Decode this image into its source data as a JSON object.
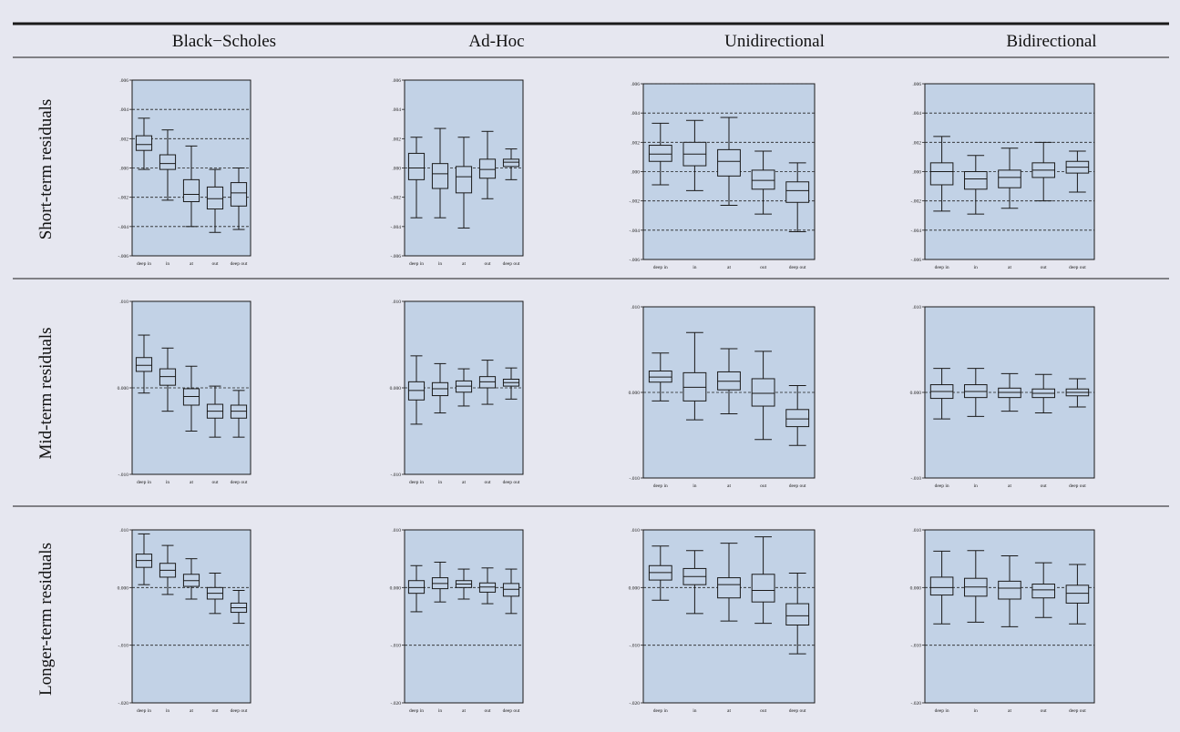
{
  "colors": {
    "background": "#e6e7f0",
    "plot_fill": "#c2d2e6",
    "rule": "#1a1a1a",
    "box_stroke": "#1a1a1a"
  },
  "column_headers": [
    "Black−Scholes",
    "Ad-Hoc",
    "Unidirectional",
    "Bidirectional"
  ],
  "row_headers": [
    "Short-term residuals",
    "Mid-term residuals",
    "Longer-term residuals"
  ],
  "chart_data": [
    {
      "type": "boxplot",
      "row": "Short-term residuals",
      "column": "Black−Scholes",
      "categories": [
        "deep  in",
        "in",
        "at",
        "out",
        "deep  out"
      ],
      "ylim": [
        -0.006,
        0.006
      ],
      "yticks": [
        ".006",
        ".004",
        ".002",
        ".000",
        "-.002",
        "-.004",
        "-.006"
      ],
      "grid_y": [
        0.004,
        0.002,
        0.0,
        -0.002,
        -0.004
      ],
      "boxes": [
        {
          "min": -0.0001,
          "q1": 0.0012,
          "median": 0.0016,
          "q3": 0.0022,
          "max": 0.0034
        },
        {
          "min": -0.0022,
          "q1": -0.0001,
          "median": 0.0003,
          "q3": 0.0009,
          "max": 0.0026
        },
        {
          "min": -0.004,
          "q1": -0.0023,
          "median": -0.0018,
          "q3": -0.0008,
          "max": 0.0015
        },
        {
          "min": -0.0044,
          "q1": -0.0028,
          "median": -0.0021,
          "q3": -0.0013,
          "max": -0.0001
        },
        {
          "min": -0.0042,
          "q1": -0.0026,
          "median": -0.0017,
          "q3": -0.001,
          "max": 0.0
        }
      ]
    },
    {
      "type": "boxplot",
      "row": "Short-term residuals",
      "column": "Ad-Hoc",
      "categories": [
        "deep  in",
        "in",
        "at",
        "out",
        "deep  out"
      ],
      "ylim": [
        -0.006,
        0.006
      ],
      "yticks": [
        ".006",
        ".004",
        ".002",
        ".000",
        "-.002",
        "-.004",
        "-.006"
      ],
      "grid_y": [
        0.0
      ],
      "boxes": [
        {
          "min": -0.0034,
          "q1": -0.0008,
          "median": 0.0,
          "q3": 0.001,
          "max": 0.0021
        },
        {
          "min": -0.0034,
          "q1": -0.0014,
          "median": -0.0004,
          "q3": 0.0003,
          "max": 0.0027
        },
        {
          "min": -0.0041,
          "q1": -0.0017,
          "median": -0.0006,
          "q3": 0.0001,
          "max": 0.0021
        },
        {
          "min": -0.0021,
          "q1": -0.0007,
          "median": -0.0001,
          "q3": 0.0006,
          "max": 0.0025
        },
        {
          "min": -0.0008,
          "q1": 0.0001,
          "median": 0.0004,
          "q3": 0.0006,
          "max": 0.0013
        }
      ]
    },
    {
      "type": "boxplot",
      "row": "Short-term residuals",
      "column": "Unidirectional",
      "categories": [
        "deep  in",
        "in",
        "at",
        "out",
        "deep  out"
      ],
      "ylim": [
        -0.006,
        0.006
      ],
      "yticks": [
        ".006",
        ".004",
        ".002",
        ".000",
        "-.002",
        "-.004",
        "-.006"
      ],
      "grid_y": [
        0.006,
        0.004,
        0.002,
        0.0,
        -0.002,
        -0.004
      ],
      "boxes": [
        {
          "min": -0.0009,
          "q1": 0.0007,
          "median": 0.0012,
          "q3": 0.0018,
          "max": 0.0033
        },
        {
          "min": -0.0013,
          "q1": 0.0004,
          "median": 0.0012,
          "q3": 0.002,
          "max": 0.0035
        },
        {
          "min": -0.0023,
          "q1": -0.0003,
          "median": 0.0007,
          "q3": 0.0015,
          "max": 0.0037
        },
        {
          "min": -0.0029,
          "q1": -0.0012,
          "median": -0.0006,
          "q3": 0.0001,
          "max": 0.0014
        },
        {
          "min": -0.0041,
          "q1": -0.0021,
          "median": -0.0013,
          "q3": -0.0007,
          "max": 0.0006
        }
      ]
    },
    {
      "type": "boxplot",
      "row": "Short-term residuals",
      "column": "Bidirectional",
      "categories": [
        "deep  in",
        "in",
        "at",
        "out",
        "deep  out"
      ],
      "ylim": [
        -0.006,
        0.006
      ],
      "yticks": [
        ".006",
        ".004",
        ".002",
        ".000",
        "-.002",
        "-.004",
        "-.006"
      ],
      "grid_y": [
        0.004,
        0.002,
        0.0,
        -0.002,
        -0.004
      ],
      "boxes": [
        {
          "min": -0.0027,
          "q1": -0.0009,
          "median": 0.0,
          "q3": 0.0006,
          "max": 0.0024
        },
        {
          "min": -0.0029,
          "q1": -0.0012,
          "median": -0.0005,
          "q3": 0.0,
          "max": 0.0011
        },
        {
          "min": -0.0025,
          "q1": -0.0011,
          "median": -0.0004,
          "q3": 0.0001,
          "max": 0.0016
        },
        {
          "min": -0.002,
          "q1": -0.0004,
          "median": 0.0001,
          "q3": 0.0006,
          "max": 0.002
        },
        {
          "min": -0.0014,
          "q1": -0.0001,
          "median": 0.0003,
          "q3": 0.0007,
          "max": 0.0014
        }
      ]
    },
    {
      "type": "boxplot",
      "row": "Mid-term residuals",
      "column": "Black−Scholes",
      "categories": [
        "deep  in",
        "in",
        "at",
        "out",
        "deep  out"
      ],
      "ylim": [
        -0.01,
        0.01
      ],
      "yticks": [
        ".010",
        "0.000",
        "-.010"
      ],
      "grid_y": [
        0.0
      ],
      "boxes": [
        {
          "min": -0.0006,
          "q1": 0.0019,
          "median": 0.0026,
          "q3": 0.0035,
          "max": 0.0061
        },
        {
          "min": -0.0027,
          "q1": 0.0003,
          "median": 0.0013,
          "q3": 0.0022,
          "max": 0.0046
        },
        {
          "min": -0.005,
          "q1": -0.002,
          "median": -0.001,
          "q3": -0.0001,
          "max": 0.0025
        },
        {
          "min": -0.0057,
          "q1": -0.0035,
          "median": -0.0027,
          "q3": -0.0019,
          "max": 0.0002
        },
        {
          "min": -0.0057,
          "q1": -0.0035,
          "median": -0.0027,
          "q3": -0.002,
          "max": -0.0003
        }
      ]
    },
    {
      "type": "boxplot",
      "row": "Mid-term residuals",
      "column": "Ad-Hoc",
      "categories": [
        "deep  in",
        "in",
        "at",
        "out",
        "deep  out"
      ],
      "ylim": [
        -0.01,
        0.01
      ],
      "yticks": [
        ".010",
        "0.000",
        "-.010"
      ],
      "grid_y": [
        0.0
      ],
      "boxes": [
        {
          "min": -0.0042,
          "q1": -0.0014,
          "median": -0.0003,
          "q3": 0.0007,
          "max": 0.0037
        },
        {
          "min": -0.0029,
          "q1": -0.0009,
          "median": -0.0001,
          "q3": 0.0006,
          "max": 0.0028
        },
        {
          "min": -0.0021,
          "q1": -0.0005,
          "median": 0.0002,
          "q3": 0.0008,
          "max": 0.0022
        },
        {
          "min": -0.0019,
          "q1": 0.0,
          "median": 0.0007,
          "q3": 0.0013,
          "max": 0.0032
        },
        {
          "min": -0.0013,
          "q1": 0.0002,
          "median": 0.0006,
          "q3": 0.001,
          "max": 0.0023
        }
      ]
    },
    {
      "type": "boxplot",
      "row": "Mid-term residuals",
      "column": "Unidirectional",
      "categories": [
        "deep  in",
        "in",
        "at",
        "out",
        "deep  out"
      ],
      "ylim": [
        -0.01,
        0.01
      ],
      "yticks": [
        ".010",
        "0.000",
        "-.010"
      ],
      "grid_y": [
        0.0
      ],
      "boxes": [
        {
          "min": -0.001,
          "q1": 0.0012,
          "median": 0.0018,
          "q3": 0.0025,
          "max": 0.0046
        },
        {
          "min": -0.0032,
          "q1": -0.001,
          "median": 0.0006,
          "q3": 0.0023,
          "max": 0.007
        },
        {
          "min": -0.0025,
          "q1": 0.0003,
          "median": 0.0013,
          "q3": 0.0024,
          "max": 0.0051
        },
        {
          "min": -0.0055,
          "q1": -0.0016,
          "median": -0.0001,
          "q3": 0.0016,
          "max": 0.0048
        },
        {
          "min": -0.0062,
          "q1": -0.004,
          "median": -0.0031,
          "q3": -0.002,
          "max": 0.0008
        }
      ]
    },
    {
      "type": "boxplot",
      "row": "Mid-term residuals",
      "column": "Bidirectional",
      "categories": [
        "deep  in",
        "in",
        "at",
        "out",
        "deep  out"
      ],
      "ylim": [
        -0.01,
        0.01
      ],
      "yticks": [
        ".010",
        "0.000",
        "-.010"
      ],
      "grid_y": [
        0.0
      ],
      "boxes": [
        {
          "min": -0.0031,
          "q1": -0.0007,
          "median": 0.0001,
          "q3": 0.0009,
          "max": 0.0028
        },
        {
          "min": -0.0028,
          "q1": -0.0006,
          "median": 0.0001,
          "q3": 0.0009,
          "max": 0.0028
        },
        {
          "min": -0.0022,
          "q1": -0.0006,
          "median": 0.0,
          "q3": 0.0005,
          "max": 0.0022
        },
        {
          "min": -0.0024,
          "q1": -0.0006,
          "median": -0.0001,
          "q3": 0.0004,
          "max": 0.0021
        },
        {
          "min": -0.0017,
          "q1": -0.0004,
          "median": 0.0,
          "q3": 0.0004,
          "max": 0.0016
        }
      ]
    },
    {
      "type": "boxplot",
      "row": "Longer-term residuals",
      "column": "Black−Scholes",
      "categories": [
        "deep  in",
        "in",
        "at",
        "out",
        "deep  out"
      ],
      "ylim": [
        -0.02,
        0.01
      ],
      "yticks": [
        ".010",
        "0.000",
        "-.010",
        "-.020"
      ],
      "grid_y": [
        0.0,
        -0.01
      ],
      "boxes": [
        {
          "min": 0.0005,
          "q1": 0.0035,
          "median": 0.0047,
          "q3": 0.0058,
          "max": 0.0093
        },
        {
          "min": -0.0012,
          "q1": 0.0018,
          "median": 0.003,
          "q3": 0.0042,
          "max": 0.0073
        },
        {
          "min": -0.002,
          "q1": 0.0002,
          "median": 0.0012,
          "q3": 0.0023,
          "max": 0.005
        },
        {
          "min": -0.0045,
          "q1": -0.002,
          "median": -0.001,
          "q3": 0.0,
          "max": 0.0025
        },
        {
          "min": -0.0062,
          "q1": -0.0043,
          "median": -0.0035,
          "q3": -0.0027,
          "max": -0.0005
        }
      ]
    },
    {
      "type": "boxplot",
      "row": "Longer-term residuals",
      "column": "Ad-Hoc",
      "categories": [
        "deep  in",
        "in",
        "at",
        "out",
        "deep  out"
      ],
      "ylim": [
        -0.02,
        0.01
      ],
      "yticks": [
        ".010",
        "0.000",
        "-.010",
        "-.020"
      ],
      "grid_y": [
        0.0,
        -0.01
      ],
      "boxes": [
        {
          "min": -0.0042,
          "q1": -0.001,
          "median": 0.0,
          "q3": 0.0012,
          "max": 0.0038
        },
        {
          "min": -0.0025,
          "q1": -0.0002,
          "median": 0.0007,
          "q3": 0.0017,
          "max": 0.0044
        },
        {
          "min": -0.002,
          "q1": 0.0,
          "median": 0.0006,
          "q3": 0.0012,
          "max": 0.0032
        },
        {
          "min": -0.0028,
          "q1": -0.0008,
          "median": 0.0001,
          "q3": 0.0008,
          "max": 0.0034
        },
        {
          "min": -0.0045,
          "q1": -0.0015,
          "median": -0.0003,
          "q3": 0.0007,
          "max": 0.0032
        }
      ]
    },
    {
      "type": "boxplot",
      "row": "Longer-term residuals",
      "column": "Unidirectional",
      "categories": [
        "deep  in",
        "in",
        "at",
        "out",
        "deep  out"
      ],
      "ylim": [
        -0.02,
        0.01
      ],
      "yticks": [
        ".010",
        "0.000",
        "-.010",
        "-.020"
      ],
      "grid_y": [
        0.0,
        -0.01
      ],
      "boxes": [
        {
          "min": -0.0022,
          "q1": 0.0013,
          "median": 0.0026,
          "q3": 0.0038,
          "max": 0.0072
        },
        {
          "min": -0.0045,
          "q1": 0.0005,
          "median": 0.0019,
          "q3": 0.0033,
          "max": 0.0064
        },
        {
          "min": -0.0058,
          "q1": -0.0018,
          "median": 0.0005,
          "q3": 0.0017,
          "max": 0.0077
        },
        {
          "min": -0.0062,
          "q1": -0.0025,
          "median": -0.0005,
          "q3": 0.0023,
          "max": 0.0088
        },
        {
          "min": -0.0115,
          "q1": -0.0065,
          "median": -0.0049,
          "q3": -0.0028,
          "max": 0.0025
        }
      ]
    },
    {
      "type": "boxplot",
      "row": "Longer-term residuals",
      "column": "Bidirectional",
      "categories": [
        "deep  in",
        "in",
        "at",
        "out",
        "deep  out"
      ],
      "ylim": [
        -0.02,
        0.01
      ],
      "yticks": [
        ".010",
        "0.000",
        "-.010",
        "-.020"
      ],
      "grid_y": [
        0.0,
        -0.01
      ],
      "boxes": [
        {
          "min": -0.0063,
          "q1": -0.0013,
          "median": 0.0,
          "q3": 0.0018,
          "max": 0.0063
        },
        {
          "min": -0.006,
          "q1": -0.0015,
          "median": 0.0001,
          "q3": 0.0016,
          "max": 0.0064
        },
        {
          "min": -0.0068,
          "q1": -0.002,
          "median": -0.0001,
          "q3": 0.0011,
          "max": 0.0055
        },
        {
          "min": -0.0052,
          "q1": -0.0018,
          "median": -0.0004,
          "q3": 0.0006,
          "max": 0.0043
        },
        {
          "min": -0.0063,
          "q1": -0.0027,
          "median": -0.001,
          "q3": 0.0004,
          "max": 0.004
        }
      ]
    }
  ]
}
